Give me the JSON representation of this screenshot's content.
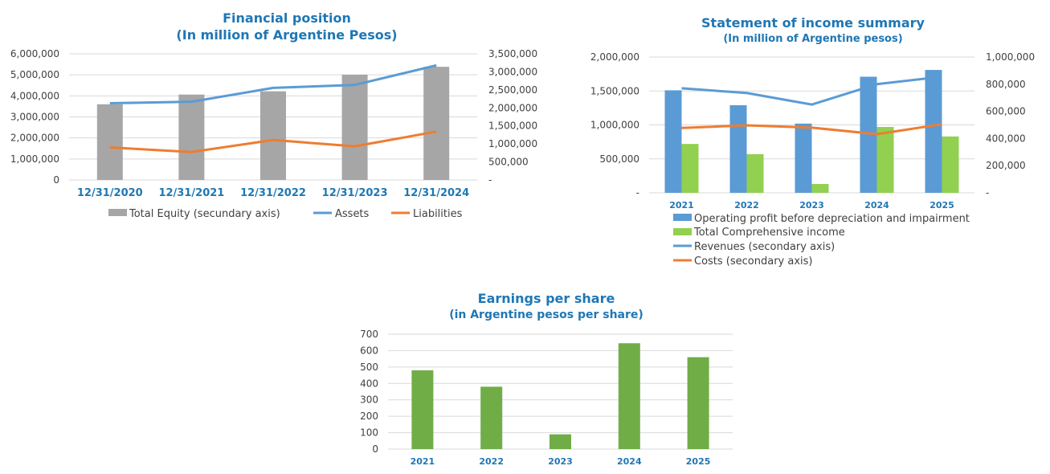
{
  "chart_data": [
    {
      "id": "financial-position",
      "type": "bar+line",
      "title": "Financial position",
      "subtitle": "(In million of Argentine Pesos)",
      "categories": [
        "12/31/2020",
        "12/31/2021",
        "12/31/2022",
        "12/31/2023",
        "12/31/2024"
      ],
      "y_ticks": [
        "6,000,000",
        "5,000,000",
        "4,000,000",
        "3,000,000",
        "2,000,000",
        "1,000,000",
        "0"
      ],
      "y2_ticks": [
        "3,500,000",
        "3,000,000",
        "2,500,000",
        "2,000,000",
        "1,500,000",
        "1,000,000",
        "500,000",
        "-"
      ],
      "ylim": [
        0,
        6000000
      ],
      "y2lim": [
        0,
        3500000
      ],
      "series": [
        {
          "name": "Total Equity (secundary axis)",
          "kind": "bar",
          "axis": "secondary",
          "color": "#A6A6A6",
          "values": [
            2100000,
            2370000,
            2460000,
            2920000,
            3140000
          ]
        },
        {
          "name": "Assets",
          "kind": "line",
          "axis": "primary",
          "color": "#5B9BD5",
          "values": [
            3650000,
            3720000,
            4380000,
            4520000,
            5450000
          ]
        },
        {
          "name": "Liabilities",
          "kind": "line",
          "axis": "primary",
          "color": "#ED7D31",
          "values": [
            1550000,
            1330000,
            1900000,
            1600000,
            2300000
          ]
        }
      ],
      "legend_position": "bottom"
    },
    {
      "id": "income-summary",
      "type": "bar+line",
      "title": "Statement of income summary",
      "subtitle": "(In million of Argentine pesos)",
      "categories": [
        "2021",
        "2022",
        "2023",
        "2024",
        "2025"
      ],
      "y_ticks": [
        "2,000,000",
        "1,500,000",
        "1,000,000",
        "500,000",
        "-"
      ],
      "y2_ticks": [
        "1,000,000",
        "800,000",
        "600,000",
        "400,000",
        "200,000",
        "-"
      ],
      "ylim": [
        0,
        2000000
      ],
      "y2lim": [
        0,
        1000000
      ],
      "series": [
        {
          "name": "Operating profit before depreciation and impairment",
          "kind": "bar",
          "axis": "primary",
          "color": "#5B9BD5",
          "values": [
            1510000,
            1290000,
            1020000,
            1710000,
            1810000
          ]
        },
        {
          "name": "Total Comprehensive income",
          "kind": "bar",
          "axis": "primary",
          "color": "#92D050",
          "values": [
            720000,
            570000,
            130000,
            970000,
            830000
          ]
        },
        {
          "name": "Revenues (secondary axis)",
          "kind": "line",
          "axis": "secondary",
          "color": "#5B9BD5",
          "values": [
            770000,
            735000,
            650000,
            800000,
            855000
          ]
        },
        {
          "name": "Costs (secondary axis)",
          "kind": "line",
          "axis": "secondary",
          "color": "#ED7D31",
          "values": [
            478000,
            497000,
            480000,
            432000,
            505000
          ]
        }
      ],
      "legend_position": "bottom"
    },
    {
      "id": "eps",
      "type": "bar",
      "title": "Earnings per share",
      "subtitle": "(in Argentine pesos per share)",
      "categories": [
        "2021",
        "2022",
        "2023",
        "2024",
        "2025"
      ],
      "y_ticks": [
        "700",
        "600",
        "500",
        "400",
        "300",
        "200",
        "100",
        "0"
      ],
      "ylim": [
        0,
        700
      ],
      "series": [
        {
          "name": "",
          "kind": "bar",
          "axis": "primary",
          "color": "#70AD47",
          "values": [
            480,
            380,
            90,
            645,
            560
          ]
        }
      ],
      "legend_position": "none"
    }
  ]
}
